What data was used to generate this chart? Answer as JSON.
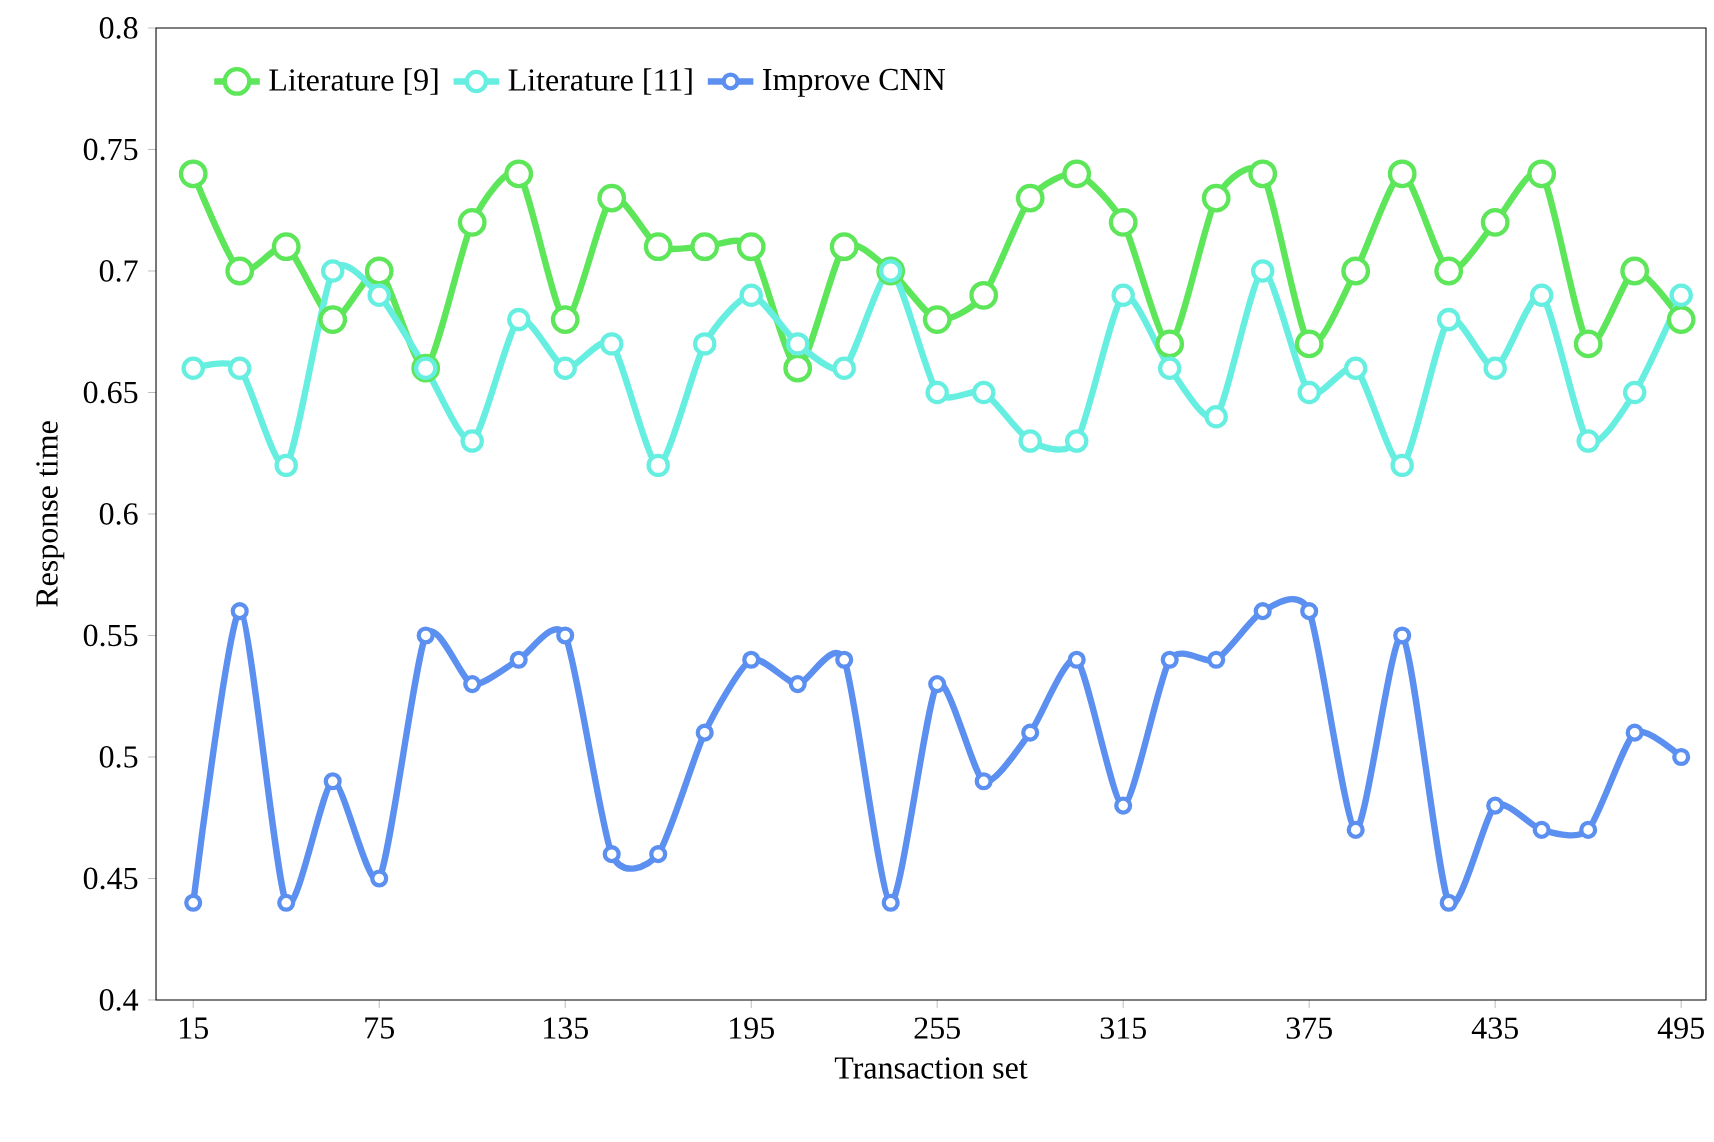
{
  "chart_data": {
    "type": "line",
    "xlabel": "Transaction set",
    "ylabel": "Response time",
    "x": [
      15,
      30,
      45,
      60,
      75,
      90,
      105,
      120,
      135,
      150,
      165,
      180,
      195,
      210,
      225,
      240,
      255,
      270,
      285,
      300,
      315,
      330,
      345,
      360,
      375,
      390,
      405,
      420,
      435,
      450,
      465,
      480,
      495
    ],
    "series": [
      {
        "name": "Literature [9]",
        "color": "#5ee65a",
        "values": [
          0.74,
          0.7,
          0.71,
          0.68,
          0.7,
          0.66,
          0.72,
          0.74,
          0.68,
          0.73,
          0.71,
          0.71,
          0.71,
          0.66,
          0.71,
          0.7,
          0.68,
          0.69,
          0.73,
          0.74,
          0.72,
          0.67,
          0.73,
          0.74,
          0.67,
          0.7,
          0.74,
          0.7,
          0.72,
          0.74,
          0.67,
          0.7,
          0.68
        ]
      },
      {
        "name": "Literature [11]",
        "color": "#66efe0",
        "values": [
          0.66,
          0.66,
          0.62,
          0.7,
          0.69,
          0.66,
          0.63,
          0.68,
          0.66,
          0.67,
          0.62,
          0.67,
          0.69,
          0.67,
          0.66,
          0.7,
          0.65,
          0.65,
          0.63,
          0.63,
          0.69,
          0.66,
          0.64,
          0.7,
          0.65,
          0.66,
          0.62,
          0.68,
          0.66,
          0.69,
          0.63,
          0.65,
          0.69
        ]
      },
      {
        "name": "Improve CNN",
        "color": "#5b8ff0",
        "values": [
          0.44,
          0.56,
          0.44,
          0.49,
          0.45,
          0.55,
          0.53,
          0.54,
          0.55,
          0.46,
          0.46,
          0.51,
          0.54,
          0.53,
          0.54,
          0.44,
          0.53,
          0.49,
          0.51,
          0.54,
          0.48,
          0.54,
          0.54,
          0.56,
          0.56,
          0.47,
          0.55,
          0.44,
          0.48,
          0.47,
          0.47,
          0.51,
          0.5
        ]
      }
    ],
    "xlim": [
      3,
      503
    ],
    "xticks": [
      15,
      75,
      135,
      195,
      255,
      315,
      375,
      435,
      495
    ],
    "ylim": [
      0.4,
      0.8
    ],
    "yticks": [
      0.4,
      0.45,
      0.5,
      0.55,
      0.6,
      0.65,
      0.7,
      0.75,
      0.8
    ],
    "grid": false,
    "legend": "top left",
    "marker": "circle",
    "line_style": "solid"
  }
}
